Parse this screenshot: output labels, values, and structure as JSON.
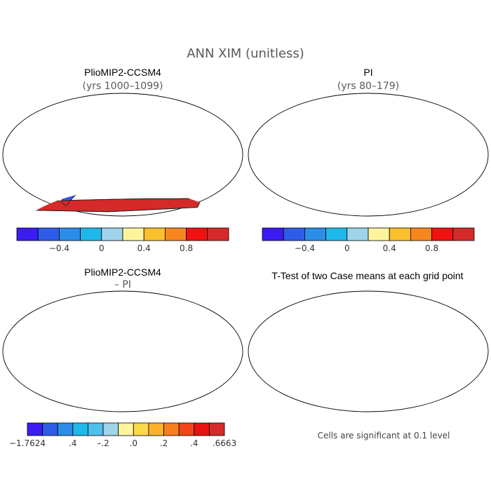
{
  "title": "ANN XIM (unitless)",
  "panels": [
    {
      "id": "plio",
      "title": "PlioMIP2-CCSM4",
      "subtitle": "(yrs 1000–1099)",
      "scheme": "abs"
    },
    {
      "id": "pi",
      "title": "PI",
      "subtitle": "(yrs 80–179)",
      "scheme": "abs"
    },
    {
      "id": "diff",
      "title": "PlioMIP2-CCSM4",
      "subtitle": "– PI",
      "scheme": "diff"
    },
    {
      "id": "ttest",
      "title": "T-Test of two Case means at each grid point",
      "subtitle": "",
      "scheme": "sig"
    }
  ],
  "colorbars": {
    "abs": {
      "colors": [
        "#3b1cf2",
        "#2e5ce8",
        "#2b8de8",
        "#1fb8ea",
        "#9fd4ea",
        "#fdf49c",
        "#fbc02d",
        "#f8861e",
        "#f21111",
        "#d62a2a"
      ],
      "ticks": [
        "−0.4",
        "0",
        "0.4",
        "0.8"
      ]
    },
    "diff": {
      "colors": [
        "#3b1cf2",
        "#2e5ce8",
        "#2b8de8",
        "#1fb8ea",
        "#4fc0ec",
        "#9fd4ea",
        "#fdf49c",
        "#fbd74a",
        "#fbb22a",
        "#f87f1d",
        "#f24418",
        "#e81212",
        "#d62a2a"
      ],
      "ticks": [
        "−1.7624",
        ".4",
        "–.2",
        ".0",
        ".2",
        ".4",
        ".6663"
      ]
    }
  },
  "significance": {
    "fill": "#ff0000",
    "note": "Cells are significant at 0.1 level"
  }
}
